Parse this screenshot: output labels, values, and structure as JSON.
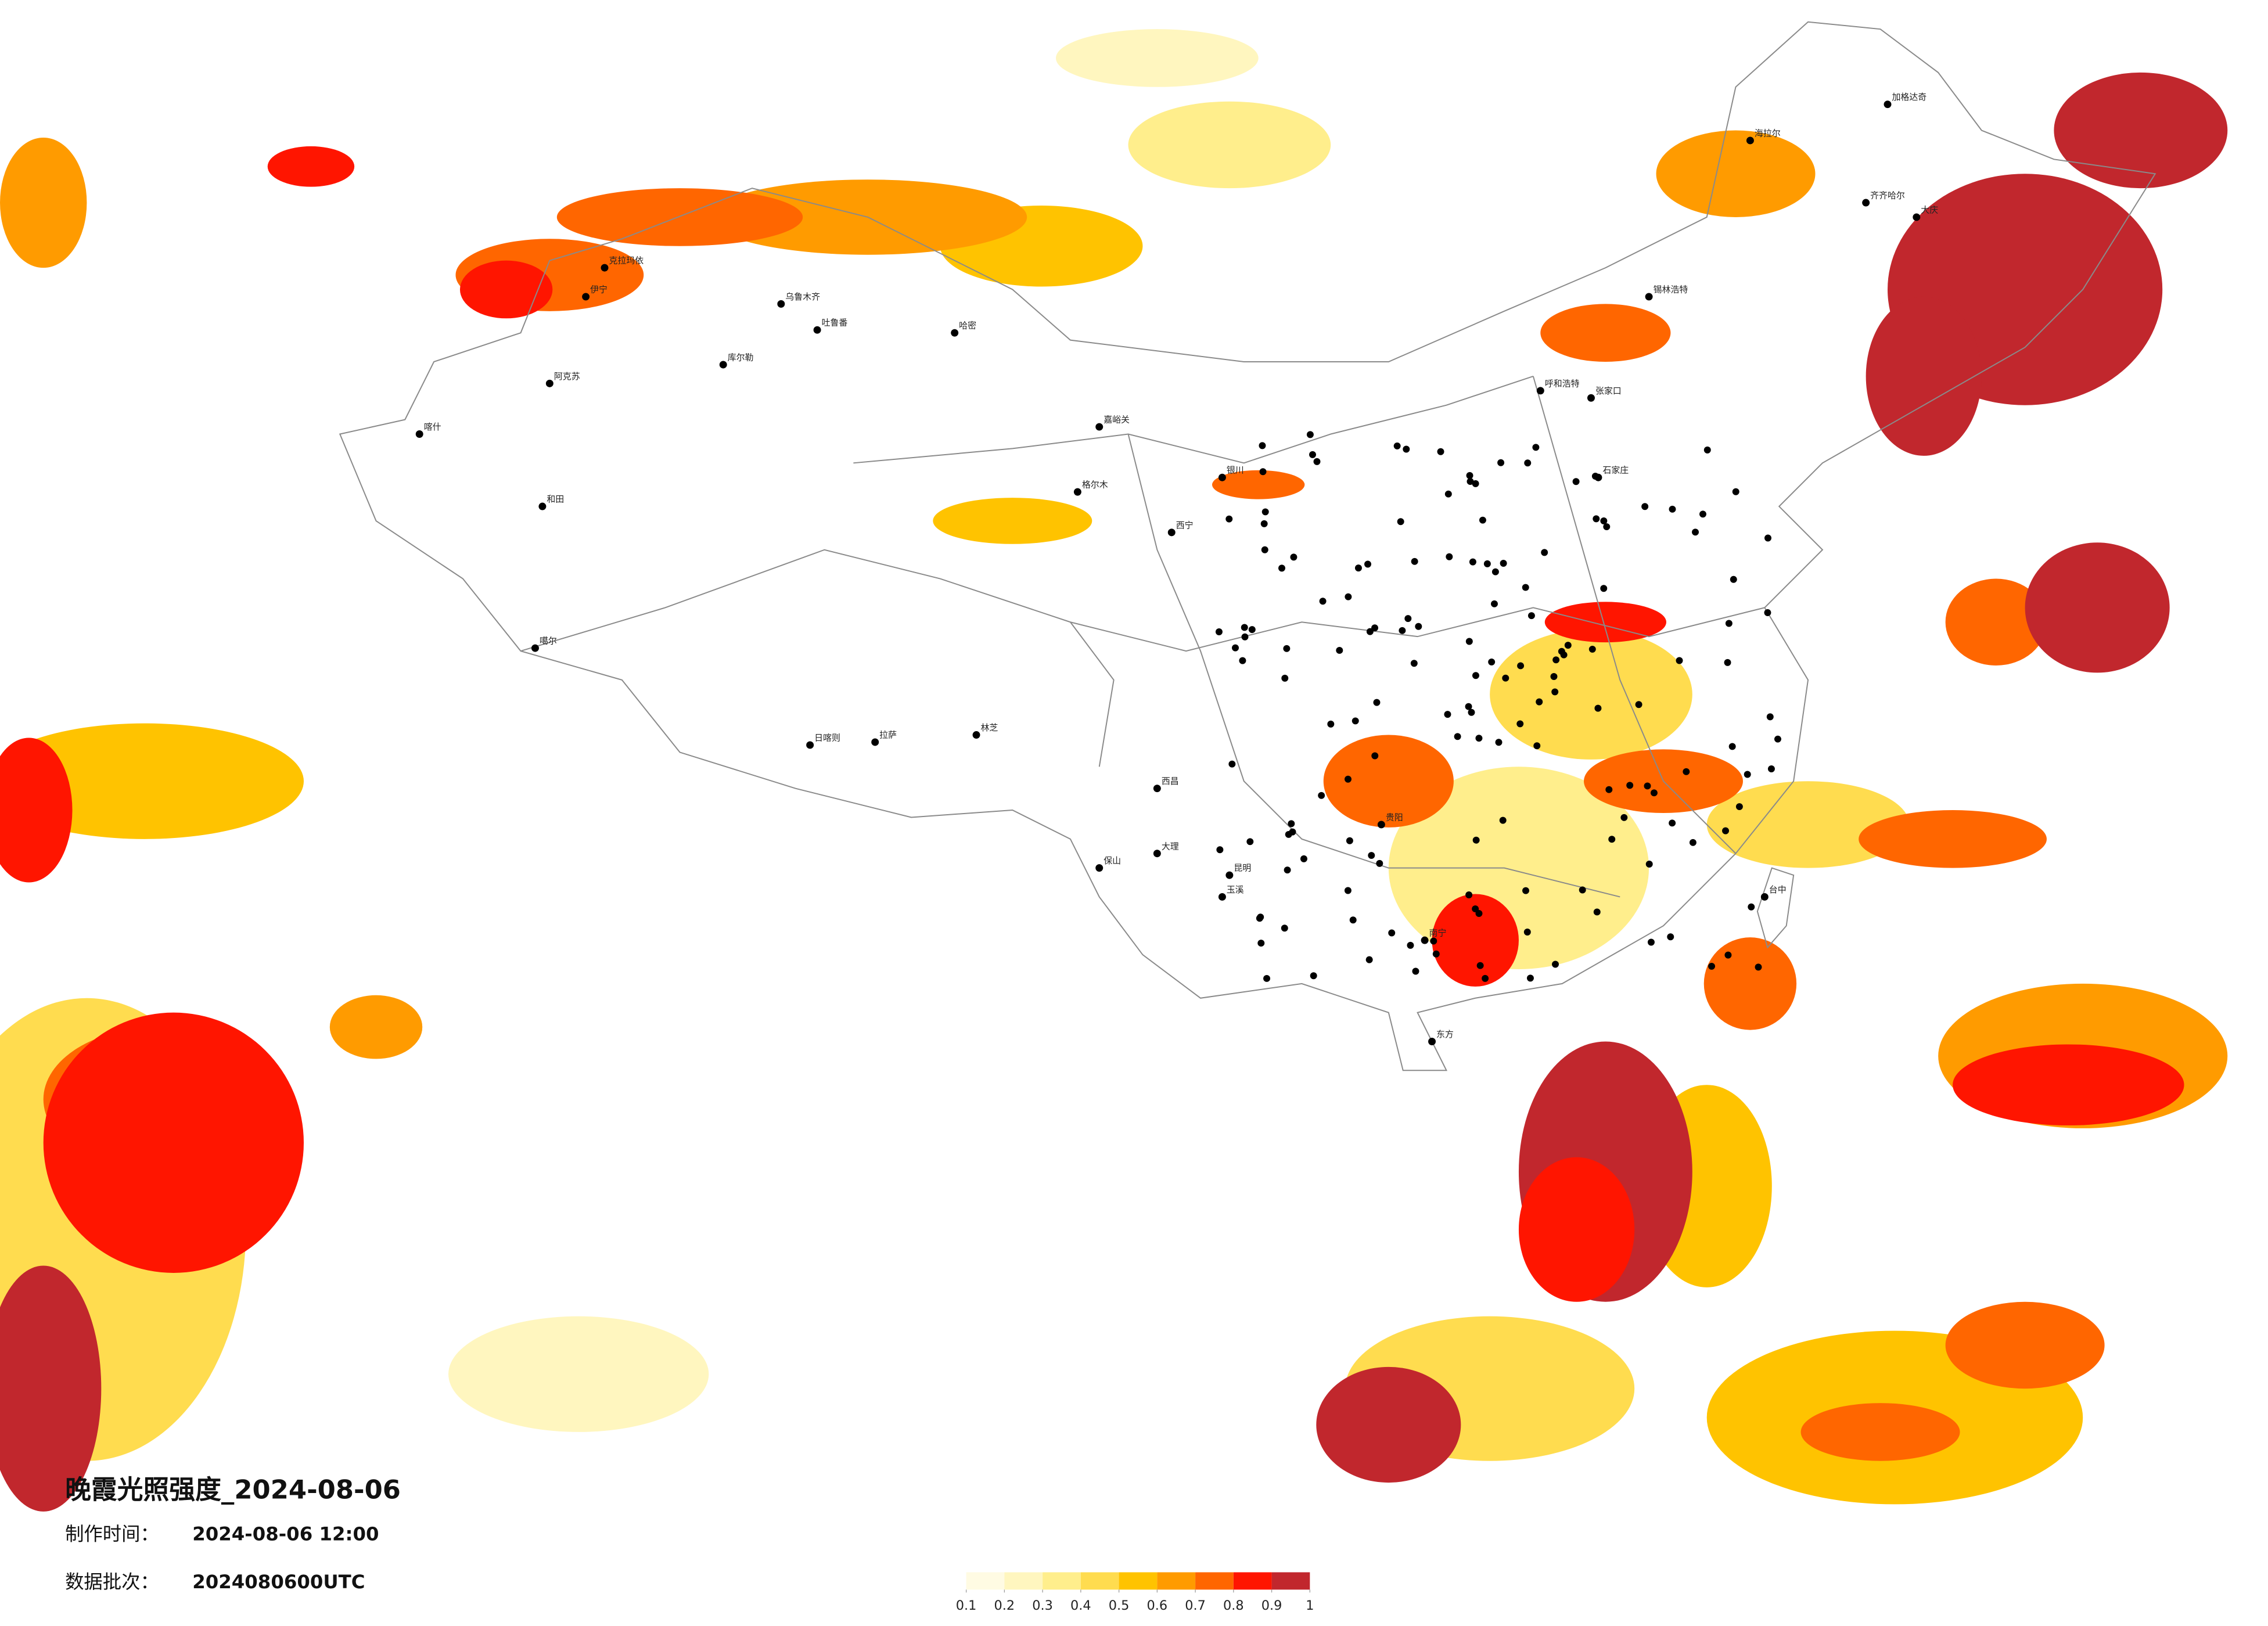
{
  "header": {
    "title": "晚霞光照强度_2024-08-06",
    "made_label": "制作时间：",
    "made_time": "2024-08-06 12:00",
    "batch_label": "数据批次：",
    "batch": "2024080600UTC"
  },
  "legend": {
    "colors": [
      "#fffbe3",
      "#fff6bf",
      "#ffee8c",
      "#ffdc4f",
      "#ffc300",
      "#ff9b00",
      "#ff6600",
      "#ff1500",
      "#c1272d"
    ],
    "ticks": [
      0.1,
      0.2,
      0.3,
      0.4,
      0.5,
      0.6,
      0.7,
      0.8,
      0.9,
      1
    ]
  },
  "cities": [
    "伊宁",
    "乌鲁木齐",
    "吐鲁番",
    "库尔勒",
    "阿克苏",
    "喀什",
    "和田",
    "哈密",
    "克拉玛依",
    "噶尔",
    "日喀则",
    "拉萨",
    "林芝",
    "格尔木",
    "西宁",
    "嘉峪关",
    "银川",
    "呼和浩特",
    "张家口",
    "石家庄",
    "锡林浩特",
    "海拉尔",
    "加格达奇",
    "齐齐哈尔",
    "大庆",
    "大理",
    "保山",
    "昆明",
    "玉溪",
    "西昌",
    "贵阳",
    "南宁",
    "东方",
    "台中"
  ]
}
